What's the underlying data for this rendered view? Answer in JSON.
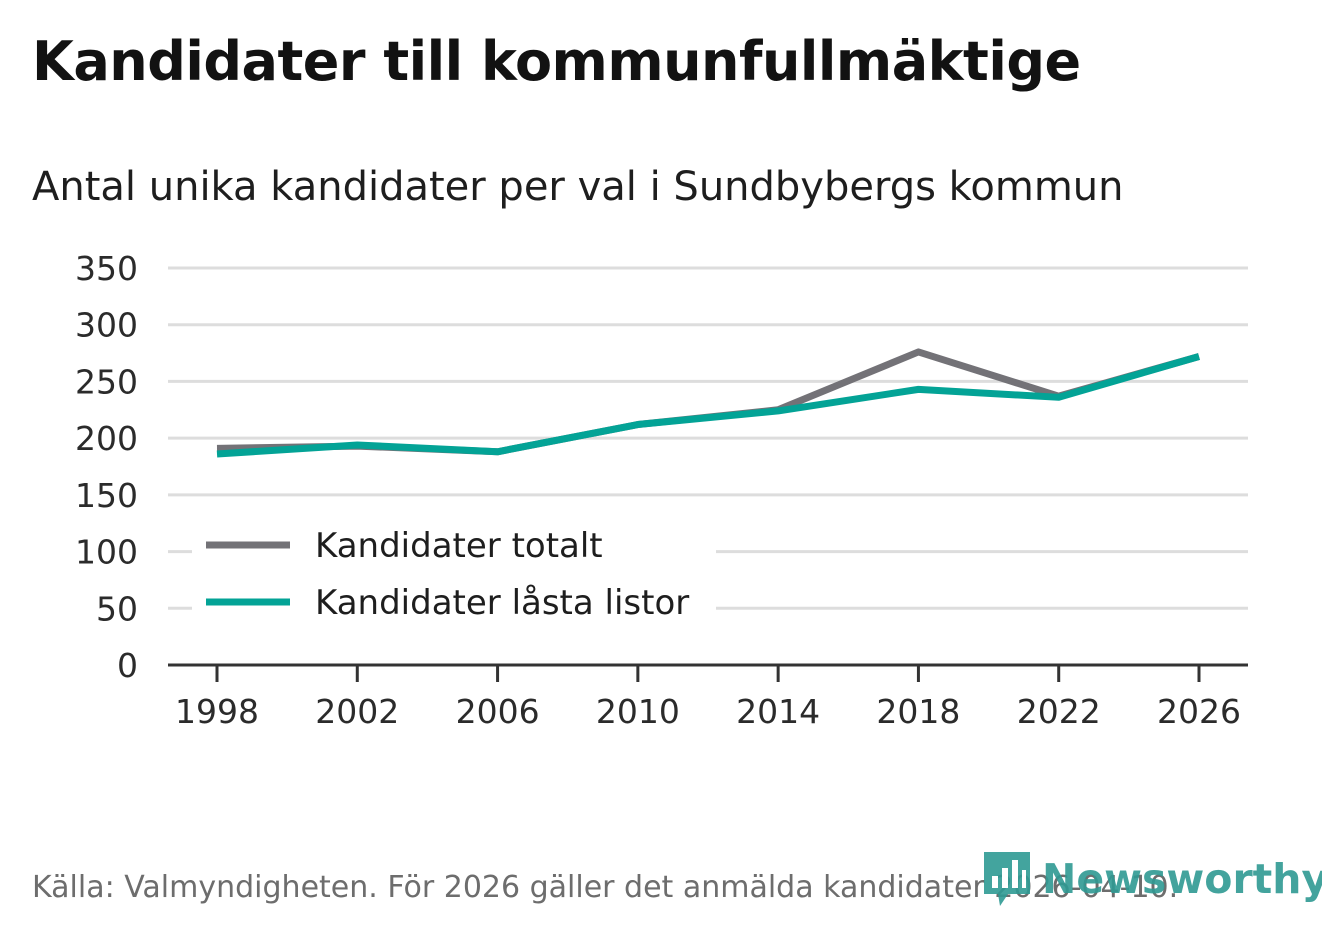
{
  "title": "Kandidater till kommunfullmäktige",
  "subtitle": "Antal unika kandidater per val i Sundbybergs kommun",
  "source": "Källa: Valmyndigheten. För 2026 gäller det anmälda kandidater 2026-04-10.",
  "logo": {
    "text": "Newsworthy",
    "icon": "newsworthy-chart-bubble-icon"
  },
  "colors": {
    "totalt": "#737277",
    "lasta": "#03a396",
    "grid": "#dddddd",
    "axis": "#333333"
  },
  "chart_data": {
    "type": "line",
    "title": "Kandidater till kommunfullmäktige",
    "subtitle": "Antal unika kandidater per val i Sundbybergs kommun",
    "xlabel": "",
    "ylabel": "",
    "x": [
      1998,
      2002,
      2006,
      2010,
      2014,
      2018,
      2022,
      2026
    ],
    "x_tick_labels": [
      "1998",
      "2002",
      "2006",
      "2010",
      "2014",
      "2018",
      "2022",
      "2026"
    ],
    "ylim": [
      0,
      350
    ],
    "y_ticks": [
      0,
      50,
      100,
      150,
      200,
      250,
      300,
      350
    ],
    "y_tick_labels": [
      "0",
      "50",
      "100",
      "150",
      "200",
      "250",
      "300",
      "350"
    ],
    "grid": true,
    "legend_position": "bottom-left",
    "series": [
      {
        "name": "Kandidater totalt",
        "color": "#737277",
        "values": [
          191,
          193,
          188,
          212,
          225,
          276,
          237,
          272
        ]
      },
      {
        "name": "Kandidater låsta listor",
        "color": "#03a396",
        "values": [
          186,
          194,
          188,
          212,
          224,
          243,
          236,
          272
        ]
      }
    ]
  }
}
